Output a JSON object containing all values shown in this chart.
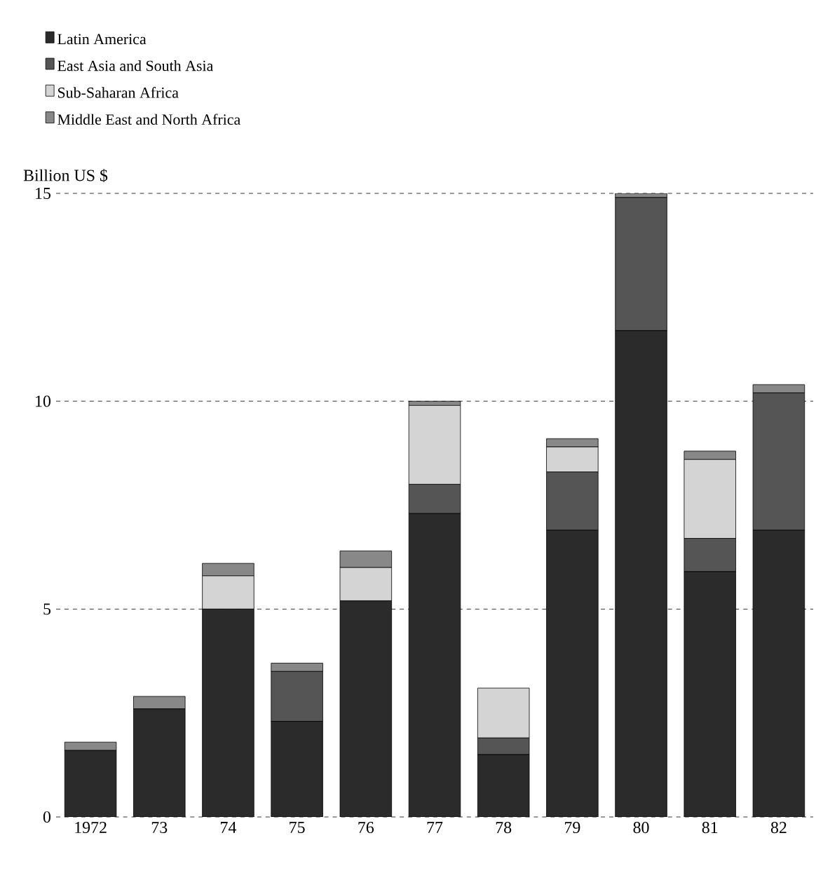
{
  "chart_data": {
    "type": "bar",
    "stacked": true,
    "ylabel": "Billion US $",
    "categories": [
      "1972",
      "73",
      "74",
      "75",
      "76",
      "77",
      "78",
      "79",
      "80",
      "81",
      "82"
    ],
    "series": [
      {
        "name": "Latin America",
        "color": "#2b2b2b",
        "values": [
          1.6,
          2.6,
          5.0,
          2.3,
          5.2,
          7.3,
          1.5,
          6.9,
          11.7,
          5.9,
          6.9
        ]
      },
      {
        "name": "East Asia and South Asia",
        "color": "#555555",
        "values": [
          0,
          0,
          0,
          1.2,
          0,
          0.7,
          0.4,
          1.4,
          3.2,
          0.8,
          3.3
        ]
      },
      {
        "name": "Sub-Saharan Africa",
        "color": "#d4d4d4",
        "values": [
          0,
          0,
          0.8,
          0,
          0.8,
          1.9,
          1.2,
          0.6,
          0,
          1.9,
          0
        ]
      },
      {
        "name": "Middle East and North Africa",
        "color": "#888888",
        "values": [
          0.2,
          0.3,
          0.3,
          0.2,
          0.4,
          0.1,
          0,
          0.2,
          0.1,
          0.2,
          0.2
        ]
      }
    ],
    "ylim": [
      0,
      15
    ],
    "yticks": [
      0,
      5,
      10,
      15
    ],
    "grid": "y",
    "legend": "top left"
  }
}
